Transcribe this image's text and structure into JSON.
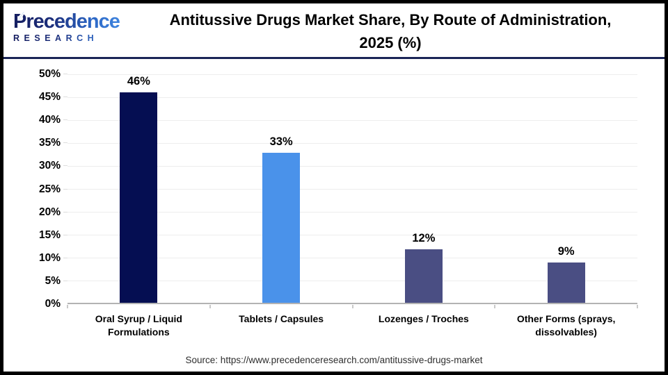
{
  "logo": {
    "brand": "Precedence",
    "subtitle": "RESEARCH",
    "leaf_icon": "leaf",
    "navy": "#141c5e",
    "blue": "#3f86e0"
  },
  "header": {
    "title_line1": "Antitussive Drugs Market Share, By Route of Administration,",
    "title_line2": "2025 (%)"
  },
  "chart_data": {
    "type": "bar",
    "title": "Antitussive Drugs Market Share, By Route of Administration, 2025 (%)",
    "categories": [
      "Oral Syrup / Liquid Formulations",
      "Tablets / Capsules",
      "Lozenges / Troches",
      "Other Forms (sprays, dissolvables)"
    ],
    "values": [
      46,
      33,
      12,
      9
    ],
    "value_labels": [
      "46%",
      "33%",
      "12%",
      "9%"
    ],
    "bar_colors": [
      "#050e52",
      "#4a92ea",
      "#4a4e83",
      "#4a4e83"
    ],
    "xlabel": "",
    "ylabel": "",
    "ylim": [
      0,
      50
    ],
    "ytick_step": 5,
    "ytick_labels": [
      "0%",
      "5%",
      "10%",
      "15%",
      "20%",
      "25%",
      "30%",
      "35%",
      "40%",
      "45%",
      "50%"
    ],
    "grid": "horizontal",
    "legend": "none",
    "gridline_color": "#ededed",
    "baseline_color": "#b3b3b3"
  },
  "footer": {
    "source": "Source: https://www.precedenceresearch.com/antitussive-drugs-market"
  }
}
